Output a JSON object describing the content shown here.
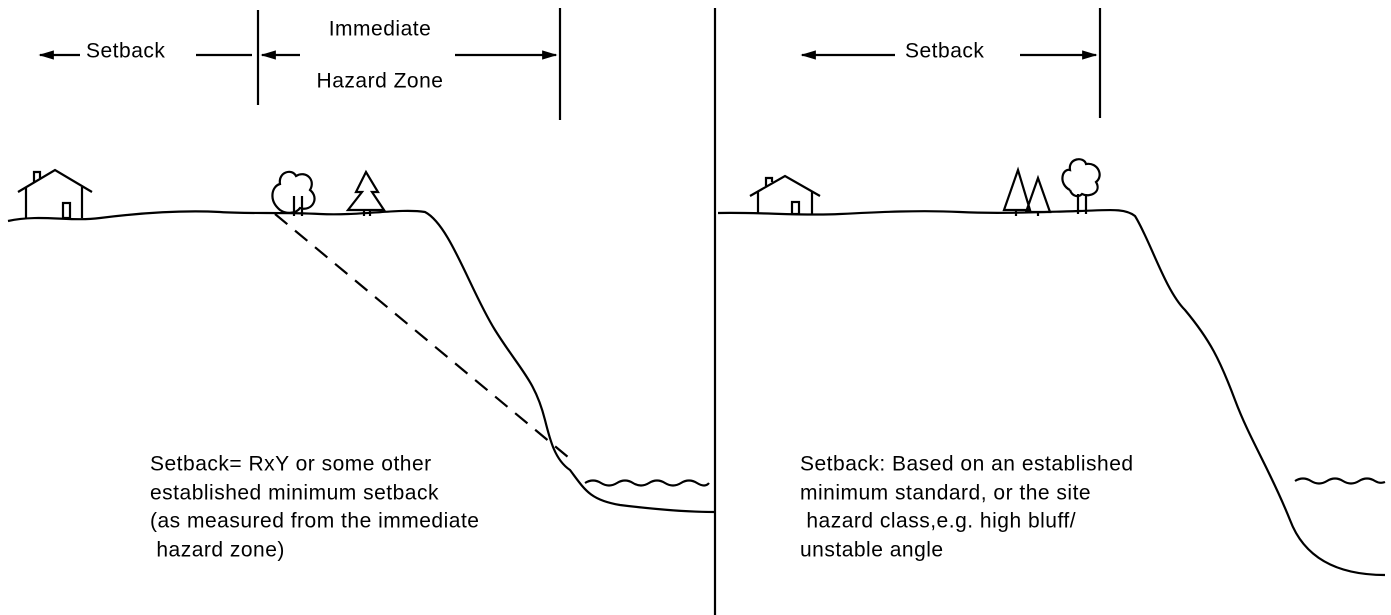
{
  "panels": [
    {
      "setback_label": "Setback",
      "zone_label": [
        "Immediate",
        "Hazard Zone"
      ],
      "caption": [
        "Setback= RxY or some other",
        "established minimum setback",
        "(as measured from the immediate",
        " hazard zone)"
      ]
    },
    {
      "setback_label": "Setback",
      "caption": [
        "Setback: Based on an established",
        "minimum standard, or the site",
        " hazard class,e.g. high bluff/",
        "unstable angle"
      ]
    }
  ]
}
